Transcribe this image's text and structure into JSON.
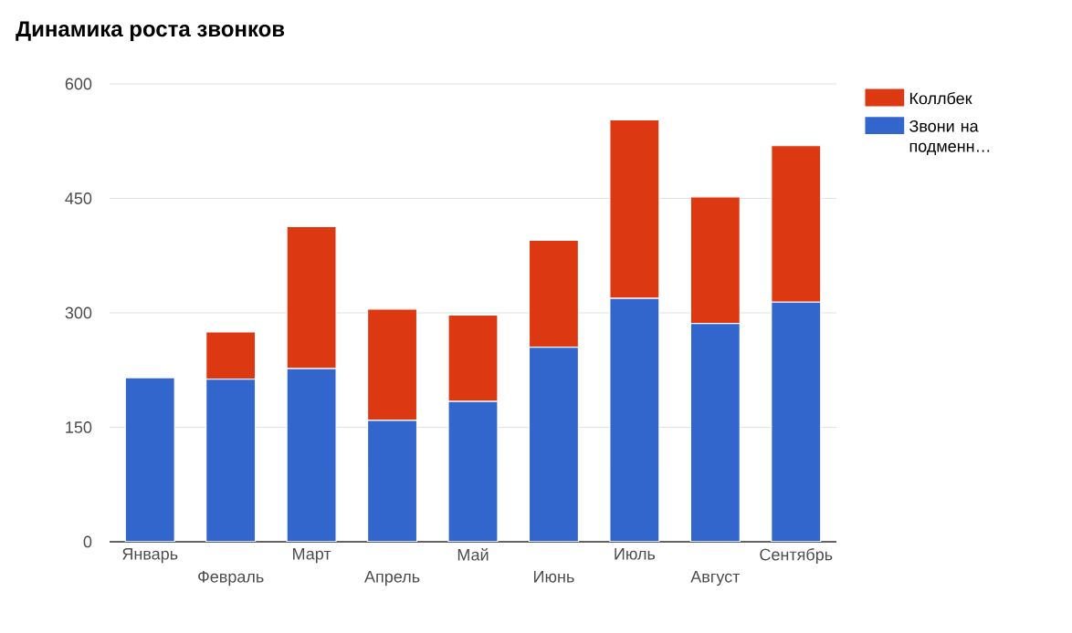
{
  "chart_data": {
    "type": "bar",
    "title": "Динамика роста звонков",
    "stacked": true,
    "categories": [
      "Январь",
      "Февраль",
      "Март",
      "Апрель",
      "Май",
      "Июнь",
      "Июль",
      "Август",
      "Сентябрь"
    ],
    "series": [
      {
        "name": "Звони на подменн…",
        "color": "#3366cc",
        "values": [
          215,
          213,
          227,
          159,
          184,
          255,
          319,
          286,
          314
        ]
      },
      {
        "name": "Коллбек",
        "color": "#dc3912",
        "values": [
          0,
          62,
          186,
          146,
          113,
          140,
          234,
          166,
          205
        ]
      }
    ],
    "ylim": [
      0,
      600
    ],
    "yticks": [
      0,
      150,
      300,
      450,
      600
    ],
    "grid": "y",
    "legend": "top right"
  }
}
